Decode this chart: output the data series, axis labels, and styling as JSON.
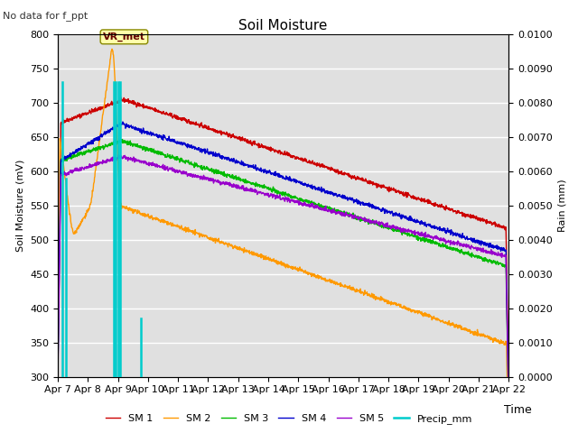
{
  "title": "Soil Moisture",
  "subtitle": "No data for f_ppt",
  "xlabel": "Time",
  "ylabel_left": "Soil Moisture (mV)",
  "ylabel_right": "Rain (mm)",
  "ylim_left": [
    300,
    800
  ],
  "ylim_right": [
    0.0,
    0.01
  ],
  "yticks_left": [
    300,
    350,
    400,
    450,
    500,
    550,
    600,
    650,
    700,
    750,
    800
  ],
  "yticks_right": [
    0.0,
    0.001,
    0.002,
    0.003,
    0.004,
    0.005,
    0.006,
    0.007,
    0.008,
    0.009,
    0.01
  ],
  "xtick_labels": [
    "Apr 7",
    "Apr 8",
    "Apr 9",
    "Apr 10",
    "Apr 11",
    "Apr 12",
    "Apr 13",
    "Apr 14",
    "Apr 15",
    "Apr 16",
    "Apr 17",
    "Apr 18",
    "Apr 19",
    "Apr 20",
    "Apr 21",
    "Apr 22"
  ],
  "colors": {
    "SM1": "#cc0000",
    "SM2": "#ff9900",
    "SM3": "#00bb00",
    "SM4": "#0000cc",
    "SM5": "#9900cc",
    "Precip": "#00cccc",
    "background": "#e0e0e0"
  },
  "vr_met_label": "VR_met",
  "legend_labels": [
    "SM 1",
    "SM 2",
    "SM 3",
    "SM 4",
    "SM 5",
    "Precip_mm"
  ],
  "precip_x": [
    0.15,
    0.28,
    1.85,
    1.92,
    2.0,
    2.08,
    2.75
  ],
  "precip_rain": [
    0.0086,
    0.0058,
    0.0086,
    0.0086,
    0.0086,
    0.0086,
    0.0017
  ]
}
